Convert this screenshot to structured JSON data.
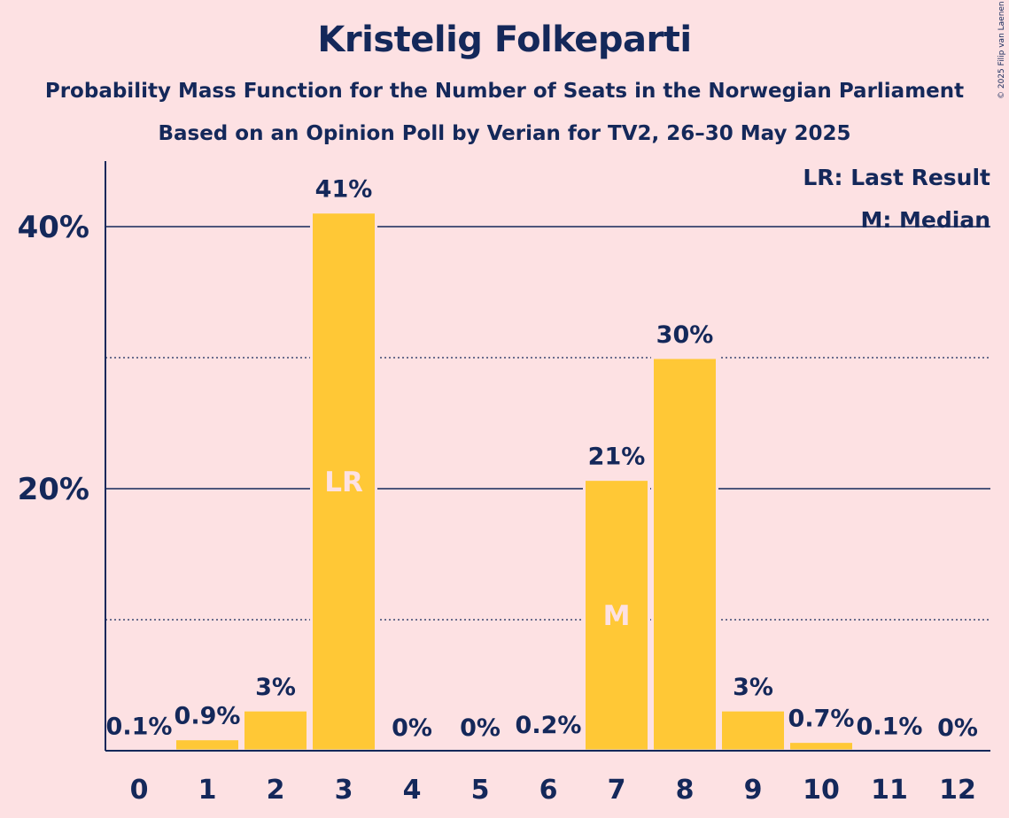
{
  "header": {
    "title": "Kristelig Folkeparti",
    "subtitle_1": "Probability Mass Function for the Number of Seats in the Norwegian Parliament",
    "subtitle_2": "Based on an Opinion Poll by Verian for TV2, 26–30 May 2025"
  },
  "copyright": "© 2025 Filip van Laenen",
  "colors": {
    "background": "#FDE1E3",
    "bar": "#FFC836",
    "text": "#14285A",
    "bar_marker_text": "#FDE1E3"
  },
  "chart_data": {
    "type": "bar",
    "categories": [
      "0",
      "1",
      "2",
      "3",
      "4",
      "5",
      "6",
      "7",
      "8",
      "9",
      "10",
      "11",
      "12"
    ],
    "values": [
      0.1,
      0.9,
      3.1,
      41.1,
      0,
      0,
      0.2,
      20.7,
      30.0,
      3.1,
      0.7,
      0.1,
      0
    ],
    "value_labels": [
      "0.1%",
      "0.9%",
      "3%",
      "41%",
      "0%",
      "0%",
      "0.2%",
      "21%",
      "30%",
      "3%",
      "0.7%",
      "0.1%",
      "0%"
    ],
    "ylim": [
      0,
      45
    ],
    "y_ticks": [
      {
        "value": 20,
        "label": "20%",
        "style": "solid"
      },
      {
        "value": 40,
        "label": "40%",
        "style": "solid"
      }
    ],
    "minor_gridlines": [
      10,
      30
    ],
    "bar_markers": [
      {
        "category": "3",
        "label": "LR"
      },
      {
        "category": "7",
        "label": "M"
      }
    ],
    "legend": {
      "position": "top-right",
      "items": [
        "LR: Last Result",
        "M: Median"
      ]
    }
  }
}
